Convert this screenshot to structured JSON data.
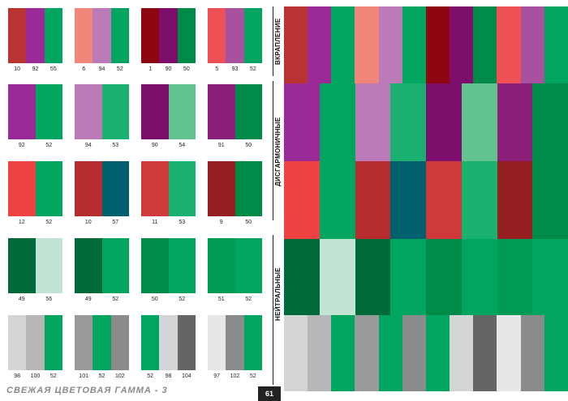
{
  "left_grid": [
    [
      {
        "colors": [
          "#b83332",
          "#9c2a96",
          "#00a660"
        ],
        "nums": [
          "10",
          "92",
          "55"
        ]
      },
      {
        "colors": [
          "#f2867a",
          "#bd7ab8",
          "#00a660"
        ],
        "nums": [
          "6",
          "94",
          "52"
        ]
      },
      {
        "colors": [
          "#8e0710",
          "#7d0e6c",
          "#008a48"
        ],
        "nums": [
          "1",
          "90",
          "50"
        ]
      },
      {
        "colors": [
          "#ef5055",
          "#a8519e",
          "#00a660"
        ],
        "nums": [
          "5",
          "93",
          "52"
        ]
      }
    ],
    [
      {
        "colors": [
          "#9c2a96",
          "#00a660"
        ],
        "nums": [
          "92",
          "52"
        ]
      },
      {
        "colors": [
          "#bd7ab8",
          "#1ab06f"
        ],
        "nums": [
          "94",
          "53"
        ]
      },
      {
        "colors": [
          "#7d0e6c",
          "#62c391"
        ],
        "nums": [
          "90",
          "54"
        ]
      },
      {
        "colors": [
          "#8a1e78",
          "#008a48"
        ],
        "nums": [
          "91",
          "50"
        ]
      }
    ],
    [
      {
        "colors": [
          "#ef4242",
          "#00a660"
        ],
        "nums": [
          "12",
          "52"
        ]
      },
      {
        "colors": [
          "#b52d2e",
          "#00606e"
        ],
        "nums": [
          "10",
          "57"
        ]
      },
      {
        "colors": [
          "#d0393a",
          "#1ab06f"
        ],
        "nums": [
          "11",
          "53"
        ]
      },
      {
        "colors": [
          "#941e20",
          "#008a48"
        ],
        "nums": [
          "9",
          "50"
        ]
      }
    ],
    [
      {
        "colors": [
          "#006a3a",
          "#c2e4d4"
        ],
        "nums": [
          "49",
          "56"
        ]
      },
      {
        "colors": [
          "#006a3a",
          "#00a660"
        ],
        "nums": [
          "49",
          "52"
        ]
      },
      {
        "colors": [
          "#008a48",
          "#00a660"
        ],
        "nums": [
          "50",
          "52"
        ]
      },
      {
        "colors": [
          "#009a54",
          "#00a660"
        ],
        "nums": [
          "51",
          "52"
        ]
      }
    ],
    [
      {
        "colors": [
          "#d4d5d7",
          "#b6b7b9",
          "#00a660"
        ],
        "nums": [
          "98",
          "100",
          "52"
        ]
      },
      {
        "colors": [
          "#98999b",
          "#00a660",
          "#8a8b8d"
        ],
        "nums": [
          "101",
          "52",
          "102"
        ]
      },
      {
        "colors": [
          "#00a660",
          "#d4d5d7",
          "#646567"
        ],
        "nums": [
          "52",
          "98",
          "104"
        ]
      },
      {
        "colors": [
          "#e6e7e8",
          "#8a8b8d",
          "#00a660"
        ],
        "nums": [
          "97",
          "102",
          "52"
        ]
      }
    ]
  ],
  "mosaic_rows": [
    [
      "#b83332",
      "#9c2a96",
      "#00a660",
      "#f2867a",
      "#bd7ab8",
      "#00a660",
      "#8e0710",
      "#7d0e6c",
      "#008a48",
      "#ef5055",
      "#a8519e",
      "#00a660"
    ],
    [
      "#9c2a96",
      "#00a660",
      "#bd7ab8",
      "#1ab06f",
      "#7d0e6c",
      "#62c391",
      "#8a1e78",
      "#008a48"
    ],
    [
      "#ef4242",
      "#00a660",
      "#b52d2e",
      "#00606e",
      "#d0393a",
      "#1ab06f",
      "#941e20",
      "#008a48"
    ],
    [
      "#006a3a",
      "#c2e4d4",
      "#006a3a",
      "#00a660",
      "#008a48",
      "#00a660",
      "#009a54",
      "#00a660"
    ],
    [
      "#d4d5d7",
      "#b6b7b9",
      "#00a660",
      "#98999b",
      "#00a660",
      "#8a8b8d",
      "#00a660",
      "#d4d5d7",
      "#646567",
      "#e6e7e8",
      "#8a8b8d",
      "#00a660"
    ]
  ],
  "labels": {
    "vkraplenie": "ВКРАПЛЕНИЕ",
    "disgarmonichnye": "ДИСГАРМОНИЧНЫЕ",
    "neitralnye": "НЕЙТРАЛЬНЫЕ"
  },
  "footer": {
    "title": "СВЕЖАЯ ЦВЕТОВАЯ ГАММА - 3",
    "page_number": "61"
  }
}
